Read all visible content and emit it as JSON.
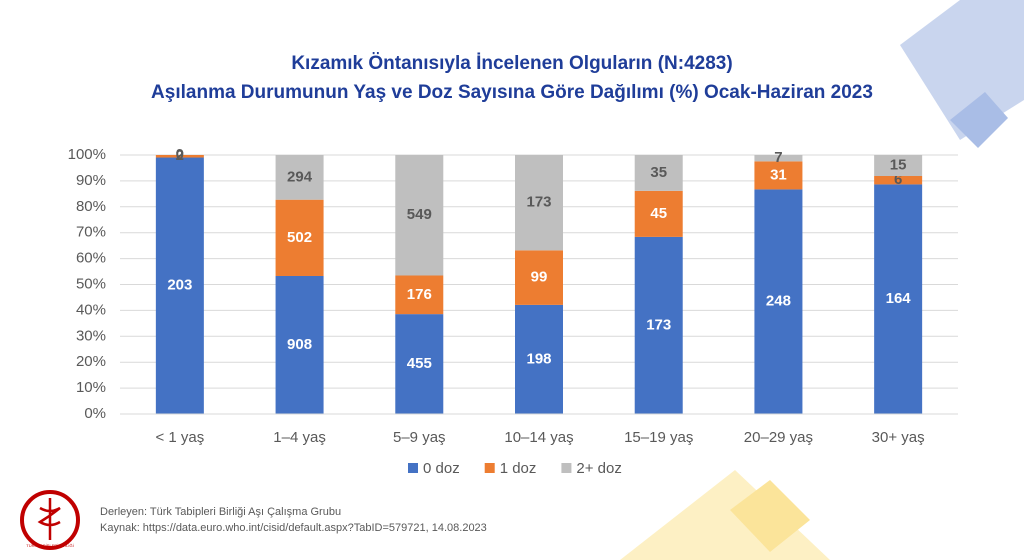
{
  "chart_data": {
    "type": "bar",
    "stacked": "percent",
    "title": [
      "Kızamık Öntanısıyla İncelenen Olguların (N:4283)",
      "Aşılanma Durumunun Yaş ve Doz Sayısına Göre Dağılımı (%) Ocak-Haziran 2023"
    ],
    "categories": [
      "< 1 yaş",
      "1–4 yaş",
      "5–9 yaş",
      "10–14 yaş",
      "15–19 yaş",
      "20–29 yaş",
      "30+ yaş"
    ],
    "series": [
      {
        "name": "0 doz",
        "color": "#4472c4",
        "label_color": "#ffffff",
        "values": [
          203,
          908,
          455,
          198,
          173,
          248,
          164
        ]
      },
      {
        "name": "1 doz",
        "color": "#ed7d31",
        "label_color": "#ffffff",
        "values": [
          2,
          502,
          176,
          99,
          45,
          31,
          6
        ]
      },
      {
        "name": "2+ doz",
        "color": "#bfbfbf",
        "label_color": "#595959",
        "values": [
          0,
          294,
          549,
          173,
          35,
          7,
          15
        ]
      }
    ],
    "ylim": [
      0,
      100
    ],
    "yticks": [
      {
        "value": 0,
        "label": "0%"
      },
      {
        "value": 10,
        "label": "10%"
      },
      {
        "value": 20,
        "label": "20%"
      },
      {
        "value": 30,
        "label": "30%"
      },
      {
        "value": 40,
        "label": "40%"
      },
      {
        "value": 50,
        "label": "50%"
      },
      {
        "value": 60,
        "label": "60%"
      },
      {
        "value": 70,
        "label": "70%"
      },
      {
        "value": 80,
        "label": "80%"
      },
      {
        "value": 90,
        "label": "90%"
      },
      {
        "value": 100,
        "label": "100%"
      }
    ],
    "grid": true,
    "legend": "bottom"
  },
  "footer": {
    "lines": [
      "Derleyen: Türk Tabipleri Birliği Aşı Çalışma Grubu",
      "Kaynak: https://data.euro.who.int/cisid/default.aspx?TabID=579721, 14.08.2023"
    ],
    "logo_text": "TÜRK TABİPLERİ BİRLİĞİ"
  }
}
